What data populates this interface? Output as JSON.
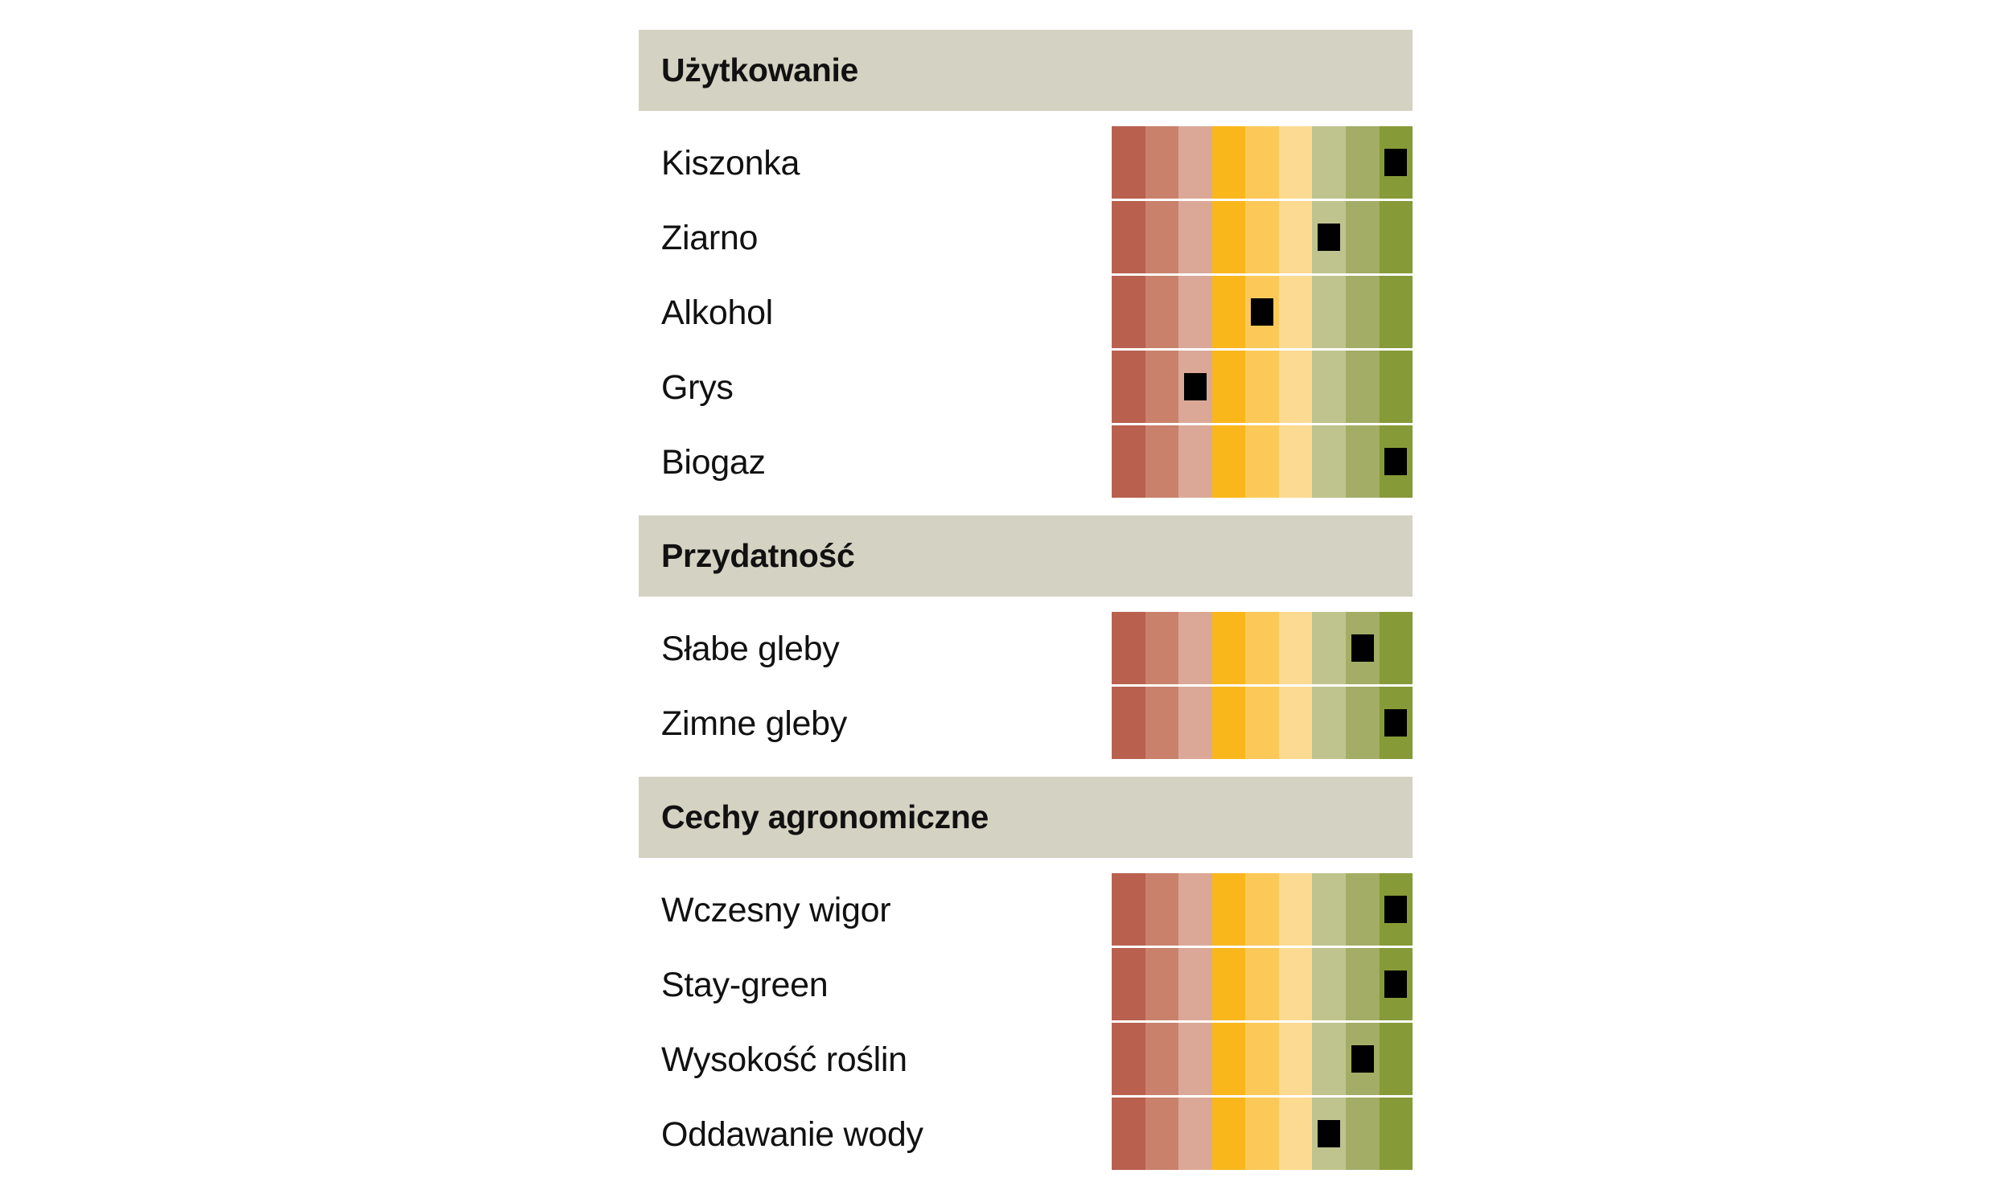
{
  "chart_data": {
    "type": "table",
    "scale_steps": 9,
    "scale_colors": [
      "#b9604f",
      "#c9816c",
      "#dba897",
      "#f9b71b",
      "#fcc959",
      "#fdda91",
      "#bfc48f",
      "#a3ad66",
      "#879a38"
    ],
    "sections": [
      {
        "title": "Użytkowanie",
        "rows": [
          {
            "label": "Kiszonka",
            "value": 9
          },
          {
            "label": "Ziarno",
            "value": 7
          },
          {
            "label": "Alkohol",
            "value": 5
          },
          {
            "label": "Grys",
            "value": 3
          },
          {
            "label": "Biogaz",
            "value": 9
          }
        ]
      },
      {
        "title": "Przydatność",
        "rows": [
          {
            "label": "Słabe gleby",
            "value": 8
          },
          {
            "label": "Zimne gleby",
            "value": 9
          }
        ]
      },
      {
        "title": "Cechy agronomiczne",
        "rows": [
          {
            "label": "Wczesny wigor",
            "value": 9
          },
          {
            "label": "Stay-green",
            "value": 9
          },
          {
            "label": "Wysokość roślin",
            "value": 8
          },
          {
            "label": "Oddawanie wody",
            "value": 7
          }
        ]
      }
    ]
  }
}
